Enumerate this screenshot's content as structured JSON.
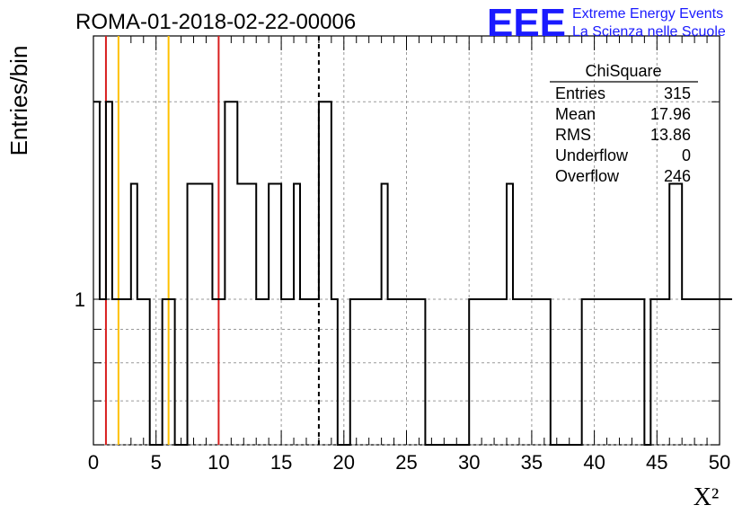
{
  "chart_data": {
    "type": "bar",
    "title": "ROMA-01-2018-02-22-00006",
    "xlabel": "X²",
    "ylabel": "Entries/bin",
    "xlim": [
      0,
      50
    ],
    "ylog": true,
    "ylim": [
      0.6,
      2.52
    ],
    "x_ticks": [
      0,
      5,
      10,
      15,
      20,
      25,
      30,
      35,
      40,
      45,
      50
    ],
    "y_tick_labels": [
      {
        "value": 1,
        "label": "1"
      }
    ],
    "grid": true,
    "bin_width": 0.5,
    "values": [
      2,
      1,
      2,
      1,
      1,
      1,
      1.5,
      1,
      1,
      0,
      0,
      1,
      1,
      0,
      0,
      1.5,
      1.5,
      1.5,
      1.5,
      1,
      1,
      2,
      2,
      1.5,
      1.5,
      1.5,
      1,
      1,
      1.5,
      1.5,
      1,
      1,
      1.5,
      1,
      1,
      1,
      2,
      2,
      1,
      0,
      0,
      1,
      1,
      1,
      1,
      1,
      1.5,
      1,
      1,
      1,
      1,
      1,
      1,
      0,
      0,
      0,
      0,
      0,
      0,
      0,
      1,
      1,
      1,
      1,
      1,
      1,
      1.5,
      1,
      1,
      1,
      1,
      1,
      1,
      0,
      0,
      0,
      0,
      0,
      1,
      1,
      1,
      1,
      1,
      1,
      1,
      1,
      1,
      1,
      0,
      1,
      1,
      1,
      1.5,
      1.5,
      1,
      1,
      1,
      1,
      1,
      1,
      1,
      1
    ],
    "vlines": [
      {
        "x": 1.0,
        "color": "#d81e1e",
        "style": "solid"
      },
      {
        "x": 2.0,
        "color": "#ffc000",
        "style": "solid"
      },
      {
        "x": 6.0,
        "color": "#ffc000",
        "style": "solid"
      },
      {
        "x": 10.0,
        "color": "#d81e1e",
        "style": "solid"
      },
      {
        "x": 18.0,
        "color": "#000000",
        "style": "dashed"
      }
    ],
    "stats": {
      "title": "ChiSquare",
      "rows": [
        {
          "label": "Entries",
          "value": "315"
        },
        {
          "label": "Mean",
          "value": "17.96"
        },
        {
          "label": "RMS",
          "value": "13.86"
        },
        {
          "label": "Underflow",
          "value": "0"
        },
        {
          "label": "Overflow",
          "value": "246"
        }
      ]
    }
  },
  "logo": {
    "mark": "EEE",
    "line1": "Extreme Energy Events",
    "line2": "La Scienza nelle Scuole"
  }
}
